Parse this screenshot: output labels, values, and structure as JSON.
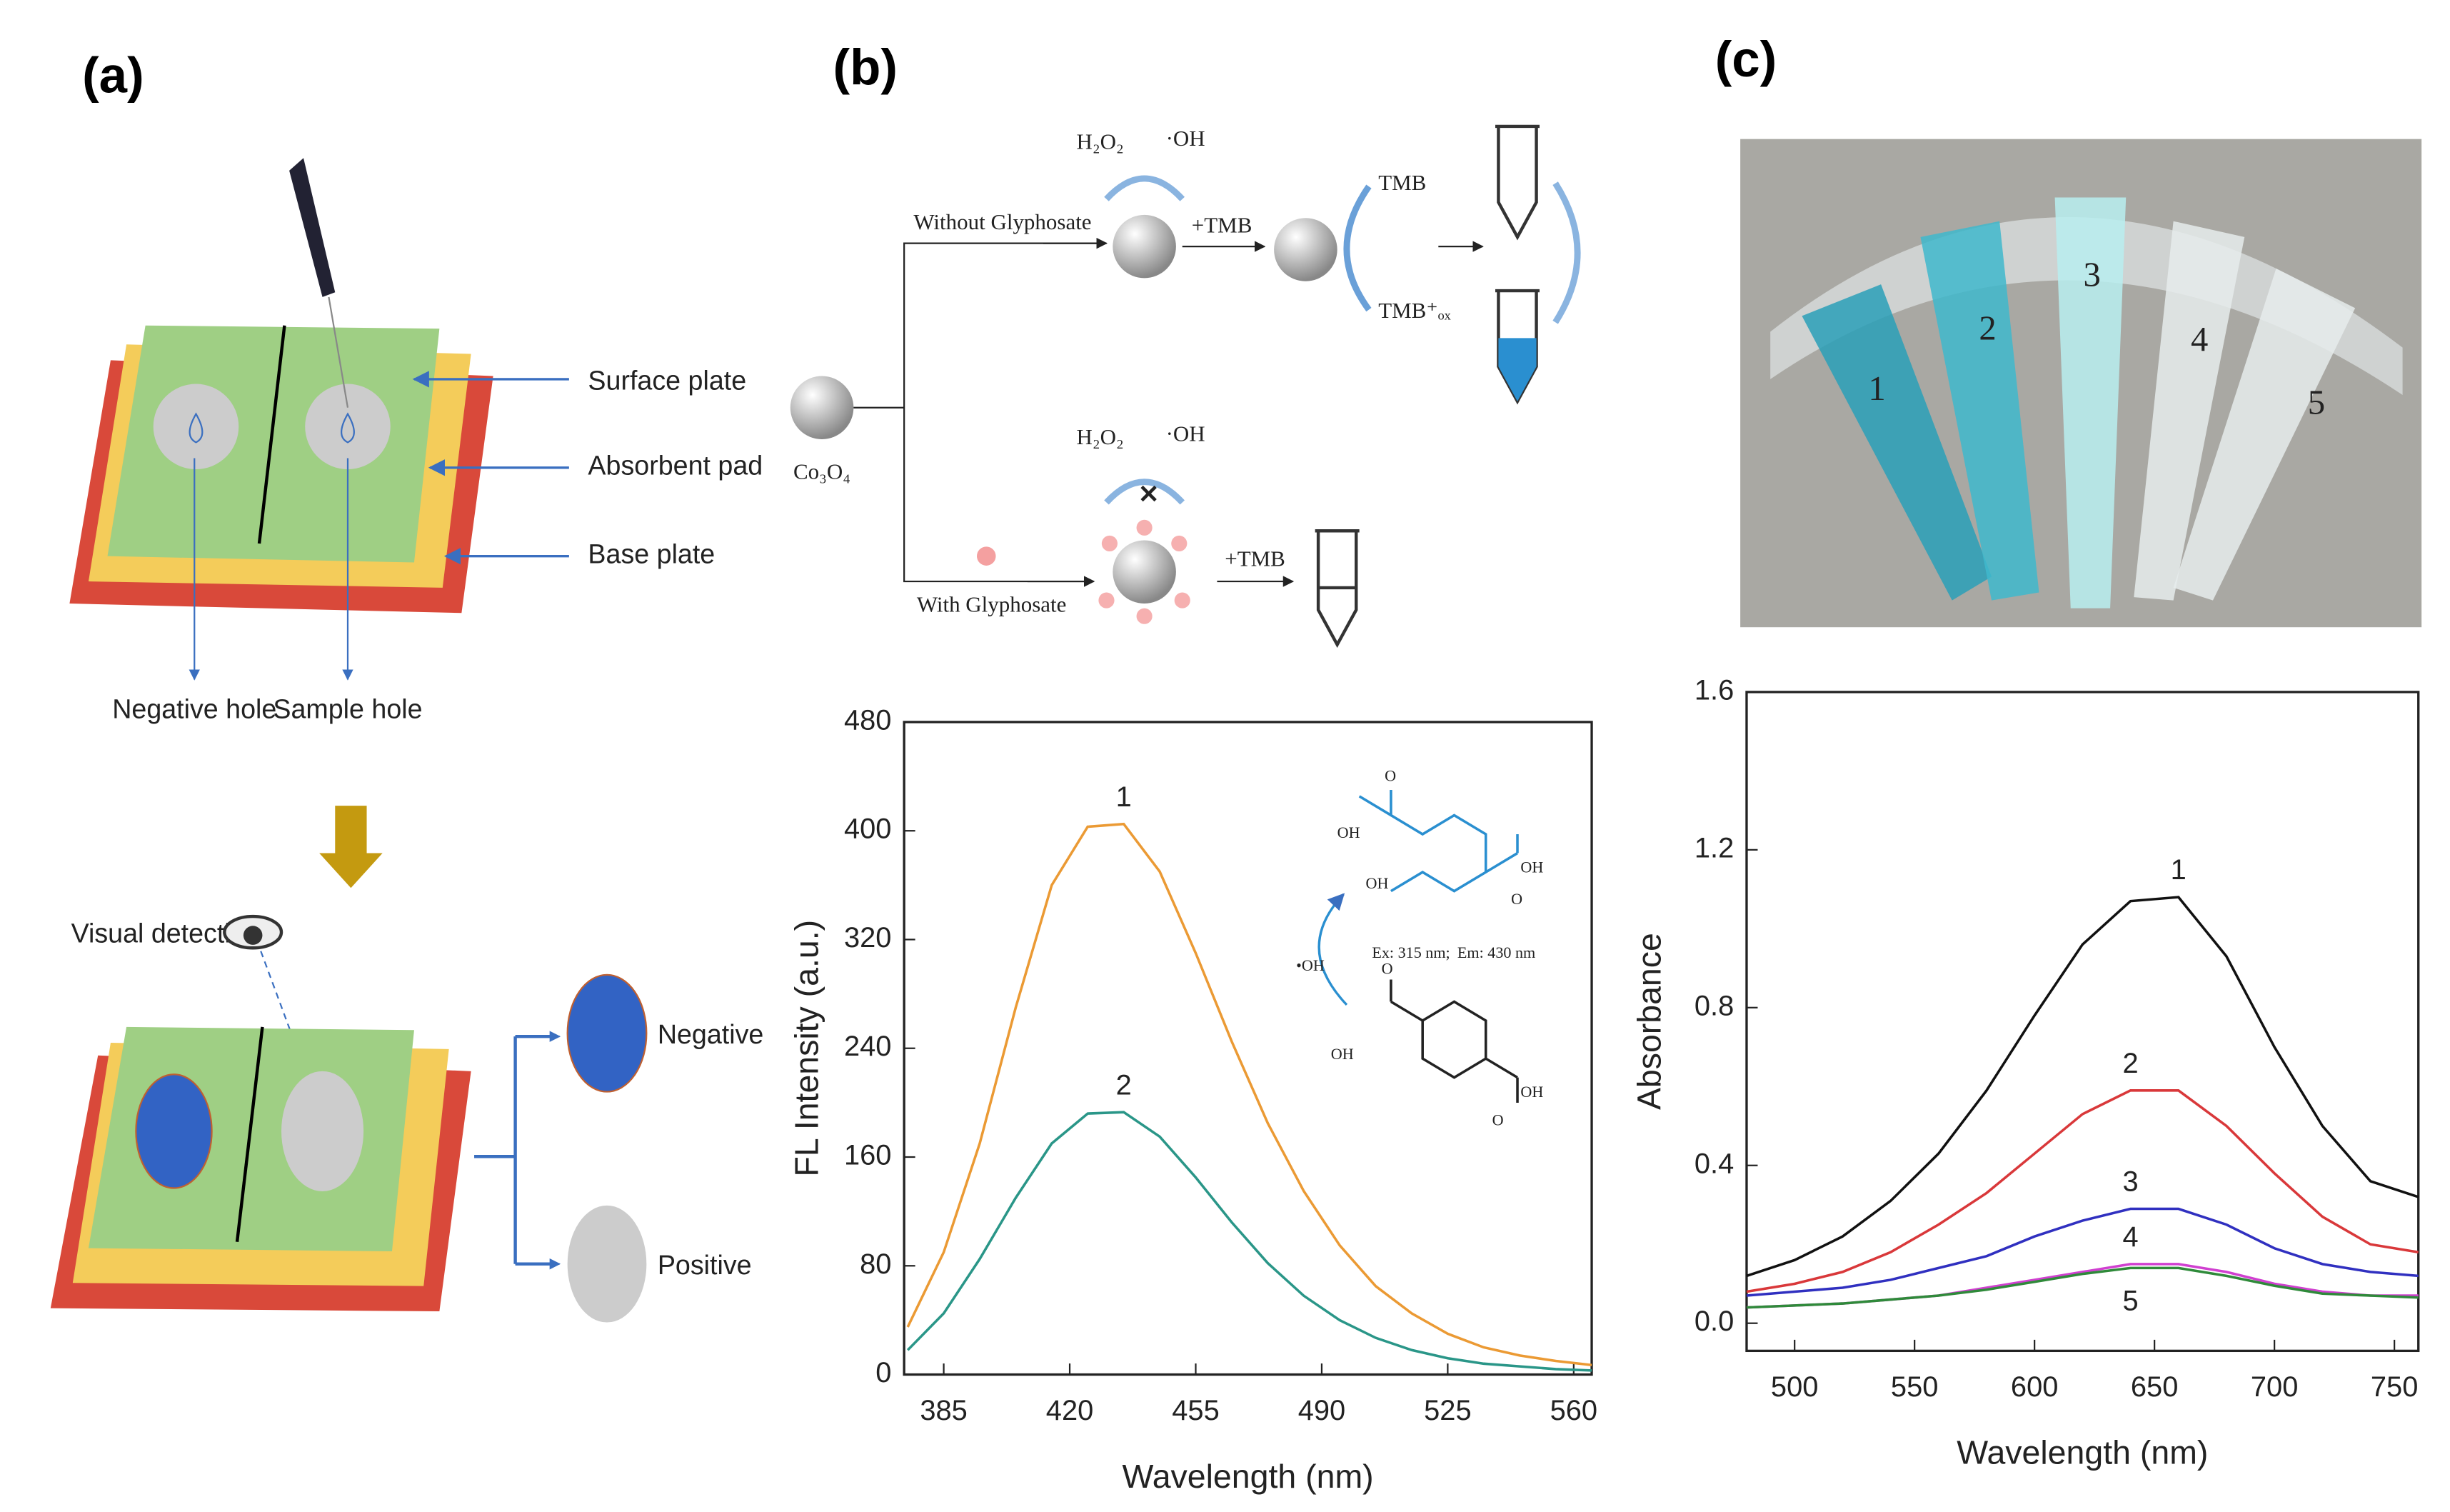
{
  "panels": {
    "a": {
      "label": "(a)",
      "surface": "Surface plate",
      "absorbent": "Absorbent pad",
      "base": "Base plate",
      "negative_hole": "Negative hole",
      "sample_hole": "Sample hole",
      "visual": "Visual detection",
      "negative": "Negative",
      "positive": "Positive"
    },
    "b": {
      "label": "(b)",
      "h2o2": "H₂O₂",
      "oh": "·OH",
      "tmb1": "+TMB",
      "tmb": "TMB",
      "tmbox": "TMB⁺ₒₓ",
      "without": "Without Glyphosate",
      "with": "With Glyphosate",
      "co3o4": "Co₃O₄",
      "h2o2_2": "H₂O₂",
      "oh_2": "·OH",
      "tmb2": "+TMB",
      "inset": {
        "radical": "•OH",
        "ex": "Ex: 315 nm;",
        "em": "Em: 430 nm",
        "labels": [
          "O",
          "OH",
          "OH",
          "OH",
          "O",
          "O",
          "OH",
          "OH",
          "O"
        ]
      }
    },
    "c": {
      "label": "(c)",
      "tubes": [
        "1",
        "2",
        "3",
        "4",
        "5"
      ]
    }
  },
  "chart_data": [
    {
      "type": "line",
      "xlabel": "Wavelength (nm)",
      "ylabel": "FL Intensity (a.u.)",
      "xlim": [
        374,
        565
      ],
      "ylim": [
        0,
        480
      ],
      "xticks": [
        385,
        420,
        455,
        490,
        525,
        560
      ],
      "yticks": [
        0,
        80,
        160,
        240,
        320,
        400,
        480
      ],
      "x": [
        375,
        385,
        395,
        405,
        415,
        425,
        435,
        445,
        455,
        465,
        475,
        485,
        495,
        505,
        515,
        525,
        535,
        545,
        555,
        565
      ],
      "series": [
        {
          "name": "1",
          "color": "#eb9a34",
          "values": [
            35,
            90,
            170,
            270,
            360,
            403,
            405,
            370,
            310,
            245,
            185,
            135,
            95,
            65,
            45,
            30,
            20,
            14,
            10,
            7
          ]
        },
        {
          "name": "2",
          "color": "#2a9688",
          "values": [
            18,
            45,
            85,
            130,
            170,
            192,
            193,
            175,
            145,
            112,
            82,
            58,
            40,
            27,
            18,
            12,
            8,
            6,
            4,
            3
          ]
        }
      ]
    },
    {
      "type": "line",
      "xlabel": "Wavelength (nm)",
      "ylabel": "Absorbance",
      "xlim": [
        480,
        760
      ],
      "ylim": [
        -0.07,
        1.6
      ],
      "xticks": [
        500,
        550,
        600,
        650,
        700,
        750
      ],
      "yticks": [
        {
          "value": 0,
          "label": "0.0"
        },
        0.4,
        0.8,
        1.2,
        1.6
      ],
      "x": [
        480,
        500,
        520,
        540,
        560,
        580,
        600,
        620,
        640,
        660,
        680,
        700,
        720,
        740,
        760
      ],
      "series": [
        {
          "name": "1",
          "color": "#111111",
          "values": [
            0.12,
            0.16,
            0.22,
            0.31,
            0.43,
            0.59,
            0.78,
            0.96,
            1.07,
            1.08,
            0.93,
            0.7,
            0.5,
            0.36,
            0.32
          ]
        },
        {
          "name": "2",
          "color": "#d9383a",
          "values": [
            0.08,
            0.1,
            0.13,
            0.18,
            0.25,
            0.33,
            0.43,
            0.53,
            0.59,
            0.59,
            0.5,
            0.38,
            0.27,
            0.2,
            0.18
          ]
        },
        {
          "name": "3",
          "color": "#3030c0",
          "values": [
            0.07,
            0.08,
            0.09,
            0.11,
            0.14,
            0.17,
            0.22,
            0.26,
            0.29,
            0.29,
            0.25,
            0.19,
            0.15,
            0.13,
            0.12
          ]
        },
        {
          "name": "4",
          "color": "#d040d0",
          "values": [
            0.04,
            0.045,
            0.05,
            0.06,
            0.07,
            0.09,
            0.11,
            0.13,
            0.15,
            0.15,
            0.13,
            0.1,
            0.08,
            0.07,
            0.07
          ]
        },
        {
          "name": "5",
          "color": "#2f8a3a",
          "values": [
            0.04,
            0.045,
            0.05,
            0.06,
            0.07,
            0.085,
            0.105,
            0.125,
            0.14,
            0.14,
            0.12,
            0.095,
            0.075,
            0.07,
            0.065
          ]
        }
      ]
    }
  ]
}
